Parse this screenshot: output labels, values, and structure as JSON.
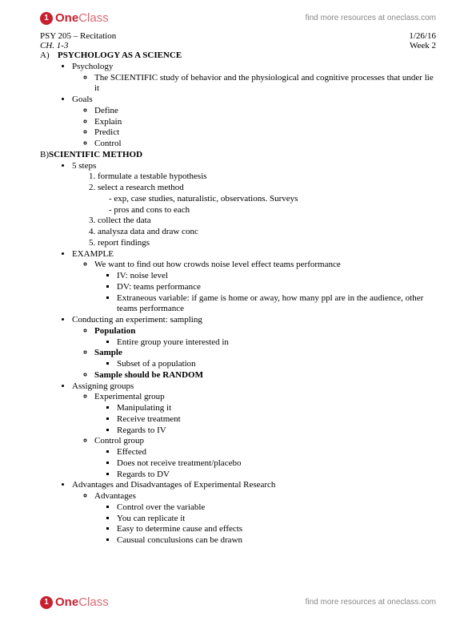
{
  "brand": {
    "icon_letter": "1",
    "name_bold": "One",
    "name_light": "Class"
  },
  "header_link": "find more resources at oneclass.com",
  "meta": {
    "left_line1": "PSY 205 – Recitation",
    "left_line2": "CH. 1-3",
    "right_line1": "1/26/16",
    "right_line2": "Week 2"
  },
  "sectionA": {
    "letter": "A)",
    "title": "PSYCHOLOGY AS A SCIENCE",
    "items": [
      {
        "label": "Psychology",
        "subs": [
          "The SCIENTIFIC study of behavior and the physiological and cognitive processes that under lie it"
        ]
      },
      {
        "label": "Goals",
        "subs": [
          "Define",
          "Explain",
          "Predict",
          "Control"
        ]
      }
    ]
  },
  "sectionB": {
    "letter": "B)",
    "title": "SCIENTIFIC METHOD",
    "five_steps_label": "5 steps",
    "steps": [
      {
        "text": "formulate a testable hypothesis"
      },
      {
        "text": "select a research method",
        "dashes": [
          "exp, case studies, naturalistic, observations. Surveys",
          "pros and cons to each"
        ]
      },
      {
        "text": "collect the data"
      },
      {
        "text": "analysza data and draw conc"
      },
      {
        "text": "report findings"
      }
    ],
    "example": {
      "label": "EXAMPLE",
      "prompt": "We want to find out how crowds noise level effect teams performance",
      "points": [
        "IV: noise level",
        "DV: teams performance",
        "Extraneous variable: if game is home or away, how many ppl are in the audience, other teams performance"
      ]
    },
    "sampling": {
      "label": "Conducting an experiment: sampling",
      "items": [
        {
          "term": "Population",
          "bold": true,
          "sub": "Entire group youre interested in"
        },
        {
          "term": "Sample",
          "bold": true,
          "sub": "Subset of a population"
        },
        {
          "term": "Sample should be RANDOM",
          "bold": true
        }
      ]
    },
    "groups": {
      "label": "Assigning groups",
      "items": [
        {
          "term": "Experimental group",
          "subs": [
            "Manipulating it",
            "Receive treatment",
            "Regards to IV"
          ]
        },
        {
          "term": "Control group",
          "subs": [
            "Effected",
            "Does not receive treatment/placebo",
            "Regards to DV"
          ]
        }
      ]
    },
    "adv": {
      "label": "Advantages and Disadvantages of Experimental Research",
      "advantages_label": "Advantages",
      "advantages": [
        "Control over the variable",
        "You can replicate it",
        "Easy to determine cause and effects",
        "Causual conculusions can be drawn"
      ]
    }
  }
}
